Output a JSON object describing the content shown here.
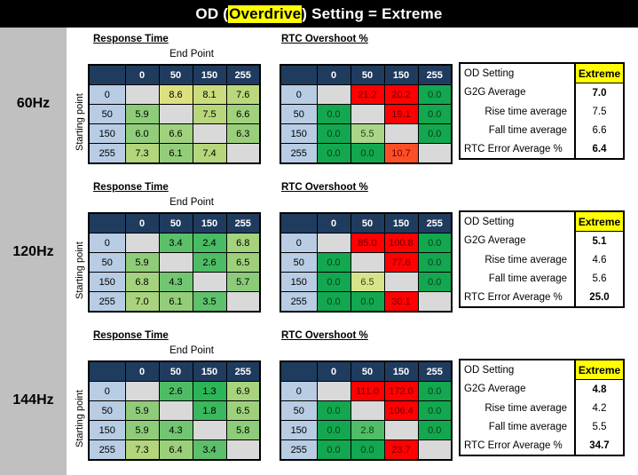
{
  "title": {
    "prefix": "OD (",
    "highlight": "Overdrive",
    "suffix": ") Setting = Extreme"
  },
  "colors": {
    "titlebar_bg": "#000000",
    "title_fg": "#FFFFFF",
    "highlight_bg": "#FFFF00",
    "sidebar_bg": "#C0C0C0",
    "header_navy": "#1F3C5F",
    "row_header_blue": "#B8CCE4",
    "empty_cell_gray": "#D9D9D9",
    "good_green": "#13A750",
    "bad_red": "#FE0100",
    "warn_orange": "#FC4F27",
    "extreme_highlight": "#FFFF00"
  },
  "axis": {
    "cols": [
      "0",
      "50",
      "150",
      "255"
    ],
    "rows": [
      "0",
      "50",
      "150",
      "255"
    ],
    "end_point": "End Point",
    "starting_point": "Starting point"
  },
  "sections": [
    {
      "freq": "60Hz",
      "rt_title": "Response Time",
      "rtc_title": "RTC Overshoot %",
      "rt_cells": [
        [
          null,
          {
            "v": "8.6",
            "bg": "#DCE180"
          },
          {
            "v": "8.1",
            "bg": "#CBDC7E"
          },
          {
            "v": "7.6",
            "bg": "#BBD87C"
          }
        ],
        [
          {
            "v": "5.9",
            "bg": "#8FCC7A"
          },
          null,
          {
            "v": "7.5",
            "bg": "#B8D77C"
          },
          {
            "v": "6.6",
            "bg": "#A0D17C"
          }
        ],
        [
          {
            "v": "6.0",
            "bg": "#91CD7A"
          },
          {
            "v": "6.6",
            "bg": "#A0D17C"
          },
          null,
          {
            "v": "6.3",
            "bg": "#99CF7B"
          }
        ],
        [
          {
            "v": "7.3",
            "bg": "#B3D67C"
          },
          {
            "v": "6.1",
            "bg": "#94CD7A"
          },
          {
            "v": "7.4",
            "bg": "#B6D67C"
          },
          null
        ]
      ],
      "rtc_cells": [
        [
          null,
          {
            "v": "21.2",
            "bg": "#FE0100",
            "fg": "#6B0003"
          },
          {
            "v": "20.2",
            "bg": "#FE0100",
            "fg": "#6B0003"
          },
          {
            "v": "0.0",
            "bg": "#13A750",
            "fg": "#06401C"
          }
        ],
        [
          {
            "v": "0.0",
            "bg": "#13A750",
            "fg": "#06401C"
          },
          null,
          {
            "v": "19.1",
            "bg": "#FE0100",
            "fg": "#6B0003"
          },
          {
            "v": "0.0",
            "bg": "#13A750",
            "fg": "#06401C"
          }
        ],
        [
          {
            "v": "0.0",
            "bg": "#13A750",
            "fg": "#06401C"
          },
          {
            "v": "5.5",
            "bg": "#ABD689",
            "fg": "#19441C"
          },
          null,
          {
            "v": "0.0",
            "bg": "#13A750",
            "fg": "#06401C"
          }
        ],
        [
          {
            "v": "0.0",
            "bg": "#13A750",
            "fg": "#06401C"
          },
          {
            "v": "0.0",
            "bg": "#13A750",
            "fg": "#06401C"
          },
          {
            "v": "10.7",
            "bg": "#FC4F27",
            "fg": "#6B0003"
          },
          null
        ]
      ],
      "summary": [
        {
          "label": "OD Setting",
          "value": "Extreme",
          "hl": true,
          "bold": true
        },
        {
          "label": "G2G Average",
          "value": "7.0",
          "bold": true
        },
        {
          "label": "Rise time average",
          "value": "7.5",
          "indent": true
        },
        {
          "label": "Fall time average",
          "value": "6.6",
          "indent": true
        },
        {
          "label": "RTC Error Average %",
          "value": "6.4",
          "bold": true
        }
      ]
    },
    {
      "freq": "120Hz",
      "rt_title": "Response Time",
      "rtc_title": "RTC Overshoot %",
      "rt_cells": [
        [
          null,
          {
            "v": "3.4",
            "bg": "#5CC06A"
          },
          {
            "v": "2.4",
            "bg": "#49BB62"
          },
          {
            "v": "6.8",
            "bg": "#A5D27D"
          }
        ],
        [
          {
            "v": "5.9",
            "bg": "#8FCC7A"
          },
          null,
          {
            "v": "2.6",
            "bg": "#4EBC64"
          },
          {
            "v": "6.5",
            "bg": "#9ED07C"
          }
        ],
        [
          {
            "v": "6.8",
            "bg": "#A5D27D"
          },
          {
            "v": "4.3",
            "bg": "#72C672"
          },
          null,
          {
            "v": "5.7",
            "bg": "#8BCB79"
          }
        ],
        [
          {
            "v": "7.0",
            "bg": "#AAD37D"
          },
          {
            "v": "6.1",
            "bg": "#94CD7A"
          },
          {
            "v": "3.5",
            "bg": "#5EC16B"
          },
          null
        ]
      ],
      "rtc_cells": [
        [
          null,
          {
            "v": "85.0",
            "bg": "#FE0100",
            "fg": "#6B0003"
          },
          {
            "v": "100.8",
            "bg": "#FE0100",
            "fg": "#6B0003"
          },
          {
            "v": "0.0",
            "bg": "#13A750",
            "fg": "#06401C"
          }
        ],
        [
          {
            "v": "0.0",
            "bg": "#13A750",
            "fg": "#06401C"
          },
          null,
          {
            "v": "77.6",
            "bg": "#FE0100",
            "fg": "#6B0003"
          },
          {
            "v": "0.0",
            "bg": "#13A750",
            "fg": "#06401C"
          }
        ],
        [
          {
            "v": "0.0",
            "bg": "#13A750",
            "fg": "#06401C"
          },
          {
            "v": "6.5",
            "bg": "#D9E38C",
            "fg": "#40460F"
          },
          null,
          {
            "v": "0.0",
            "bg": "#13A750",
            "fg": "#06401C"
          }
        ],
        [
          {
            "v": "0.0",
            "bg": "#13A750",
            "fg": "#06401C"
          },
          {
            "v": "0.0",
            "bg": "#13A750",
            "fg": "#06401C"
          },
          {
            "v": "30.1",
            "bg": "#FE0100",
            "fg": "#6B0003"
          },
          null
        ]
      ],
      "summary": [
        {
          "label": "OD Setting",
          "value": "Extreme",
          "hl": true,
          "bold": true
        },
        {
          "label": "G2G Average",
          "value": "5.1",
          "bold": true
        },
        {
          "label": "Rise time average",
          "value": "4.6",
          "indent": true
        },
        {
          "label": "Fall time average",
          "value": "5.6",
          "indent": true
        },
        {
          "label": "RTC Error Average %",
          "value": "25.0",
          "bold": true
        }
      ]
    },
    {
      "freq": "144Hz",
      "rt_title": "Response Time",
      "rtc_title": "RTC Overshoot %",
      "rt_cells": [
        [
          null,
          {
            "v": "2.6",
            "bg": "#4EBC64"
          },
          {
            "v": "1.3",
            "bg": "#2DB457"
          },
          {
            "v": "6.9",
            "bg": "#A7D37D"
          }
        ],
        [
          {
            "v": "5.9",
            "bg": "#8FCC7A"
          },
          null,
          {
            "v": "1.8",
            "bg": "#3BB75D"
          },
          {
            "v": "6.5",
            "bg": "#9ED07C"
          }
        ],
        [
          {
            "v": "5.9",
            "bg": "#8FCC7A"
          },
          {
            "v": "4.3",
            "bg": "#72C672"
          },
          null,
          {
            "v": "5.8",
            "bg": "#8DCC79"
          }
        ],
        [
          {
            "v": "7.3",
            "bg": "#B3D67C"
          },
          {
            "v": "6.4",
            "bg": "#9BD07B"
          },
          {
            "v": "3.4",
            "bg": "#5CC06A"
          },
          null
        ]
      ],
      "rtc_cells": [
        [
          null,
          {
            "v": "111.0",
            "bg": "#FE0100",
            "fg": "#6B0003"
          },
          {
            "v": "172.0",
            "bg": "#FE0100",
            "fg": "#6B0003"
          },
          {
            "v": "0.0",
            "bg": "#13A750",
            "fg": "#06401C"
          }
        ],
        [
          {
            "v": "0.0",
            "bg": "#13A750",
            "fg": "#06401C"
          },
          null,
          {
            "v": "106.4",
            "bg": "#FE0100",
            "fg": "#6B0003"
          },
          {
            "v": "0.0",
            "bg": "#13A750",
            "fg": "#06401C"
          }
        ],
        [
          {
            "v": "0.0",
            "bg": "#13A750",
            "fg": "#06401C"
          },
          {
            "v": "2.8",
            "bg": "#51BD66",
            "fg": "#0B431D"
          },
          null,
          {
            "v": "0.0",
            "bg": "#13A750",
            "fg": "#06401C"
          }
        ],
        [
          {
            "v": "0.0",
            "bg": "#13A750",
            "fg": "#06401C"
          },
          {
            "v": "0.0",
            "bg": "#13A750",
            "fg": "#06401C"
          },
          {
            "v": "23.7",
            "bg": "#FE0100",
            "fg": "#6B0003"
          },
          null
        ]
      ],
      "summary": [
        {
          "label": "OD Setting",
          "value": "Extreme",
          "hl": true,
          "bold": true
        },
        {
          "label": "G2G Average",
          "value": "4.8",
          "bold": true
        },
        {
          "label": "Rise time average",
          "value": "4.2",
          "indent": true
        },
        {
          "label": "Fall time average",
          "value": "5.5",
          "indent": true
        },
        {
          "label": "RTC Error Average %",
          "value": "34.7",
          "bold": true
        }
      ]
    }
  ]
}
